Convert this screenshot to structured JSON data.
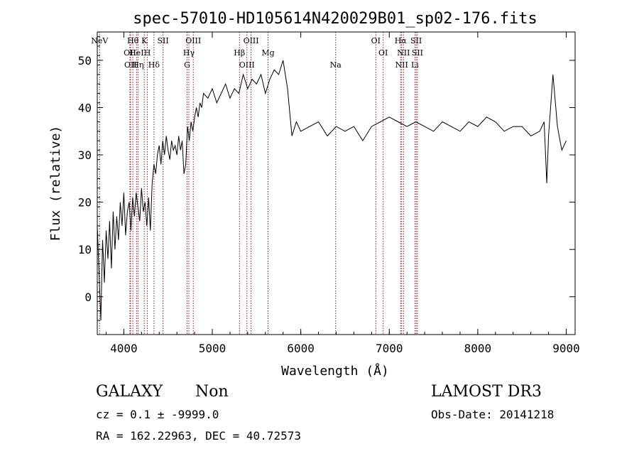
{
  "chart_data": {
    "type": "line",
    "title": "spec-57010-HD105614N420029B01_sp02-176.fits",
    "xlabel": "Wavelength (Å)",
    "ylabel": "Flux (relative)",
    "xlim": [
      3700,
      9100
    ],
    "ylim": [
      -8,
      56
    ],
    "xticks": [
      4000,
      5000,
      6000,
      7000,
      8000,
      9000
    ],
    "yticks": [
      0,
      10,
      20,
      30,
      40,
      50
    ],
    "grid": false,
    "line_color": "#000000",
    "marker_color": "#8b1a1a",
    "series": [
      {
        "x": [
          3700,
          3720,
          3740,
          3760,
          3780,
          3800,
          3820,
          3840,
          3860,
          3880,
          3900,
          3920,
          3940,
          3960,
          3980,
          4000,
          4020,
          4040,
          4060,
          4080,
          4100,
          4120,
          4140,
          4160,
          4180,
          4200,
          4220,
          4240,
          4260,
          4280,
          4300,
          4320,
          4340,
          4360,
          4380,
          4400,
          4420,
          4440,
          4460,
          4480,
          4500,
          4520,
          4540,
          4560,
          4580,
          4600,
          4620,
          4640,
          4660,
          4680,
          4700,
          4720,
          4740,
          4760,
          4780,
          4800,
          4820,
          4840,
          4860,
          4880,
          4900,
          4950,
          5000,
          5050,
          5100,
          5150,
          5200,
          5250,
          5300,
          5350,
          5400,
          5450,
          5500,
          5550,
          5600,
          5650,
          5700,
          5750,
          5800,
          5850,
          5880,
          5900,
          5950,
          6000,
          6100,
          6200,
          6300,
          6400,
          6500,
          6600,
          6700,
          6800,
          6900,
          7000,
          7100,
          7200,
          7300,
          7400,
          7500,
          7600,
          7700,
          7800,
          7900,
          8000,
          8100,
          8200,
          8300,
          8400,
          8500,
          8600,
          8700,
          8750,
          8780,
          8800,
          8850,
          8900,
          8950,
          9000
        ],
        "y": [
          15,
          5,
          -5,
          12,
          3,
          14,
          8,
          16,
          6,
          18,
          10,
          17,
          12,
          20,
          15,
          22,
          13,
          18,
          20,
          14,
          21,
          17,
          22,
          19,
          16,
          23,
          18,
          20,
          15,
          21,
          14,
          24,
          28,
          26,
          30,
          32,
          28,
          33,
          30,
          34,
          31,
          29,
          33,
          31,
          32,
          30,
          34,
          31,
          33,
          26,
          28,
          36,
          33,
          37,
          35,
          38,
          40,
          38,
          41,
          40,
          43,
          42,
          44,
          41,
          43,
          45,
          42,
          44,
          43,
          47,
          44,
          46,
          45,
          47,
          43,
          46,
          48,
          47,
          50,
          44,
          38,
          34,
          37,
          35,
          36,
          37,
          34,
          36,
          35,
          36,
          33,
          36,
          37,
          38,
          37,
          36,
          37,
          36,
          35,
          37,
          36,
          35,
          37,
          36,
          38,
          37,
          35,
          36,
          36,
          34,
          35,
          37,
          24,
          34,
          47,
          36,
          31,
          33
        ]
      }
    ],
    "lines": [
      {
        "label": "NeV",
        "wavelength": 3726
      },
      {
        "label": "OII",
        "wavelength": 4069
      },
      {
        "label": "OII",
        "wavelength": 4076
      },
      {
        "label": "Hθ",
        "wavelength": 4102
      },
      {
        "label": "HeI",
        "wavelength": 4144
      },
      {
        "label": "Hη",
        "wavelength": 4160
      },
      {
        "label": "K",
        "wavelength": 4231
      },
      {
        "label": "H",
        "wavelength": 4266
      },
      {
        "label": "Hδ",
        "wavelength": 4341
      },
      {
        "label": "SII",
        "wavelength": 4443
      },
      {
        "label": "Hγ",
        "wavelength": 4735
      },
      {
        "label": "G",
        "wavelength": 4715
      },
      {
        "label": "OIII",
        "wavelength": 4785
      },
      {
        "label": "Hβ",
        "wavelength": 5307
      },
      {
        "label": "OIII",
        "wavelength": 5391
      },
      {
        "label": "OIII",
        "wavelength": 5438
      },
      {
        "label": "Mg",
        "wavelength": 5630
      },
      {
        "label": "Na",
        "wavelength": 6394
      },
      {
        "label": "OI",
        "wavelength": 6848
      },
      {
        "label": "OI",
        "wavelength": 6931
      },
      {
        "label": "NII",
        "wavelength": 7140
      },
      {
        "label": "Hα",
        "wavelength": 7128
      },
      {
        "label": "NII",
        "wavelength": 7161
      },
      {
        "label": "Li",
        "wavelength": 7290
      },
      {
        "label": "SII",
        "wavelength": 7304
      },
      {
        "label": "SII",
        "wavelength": 7318
      }
    ]
  },
  "info": {
    "class_left": "GALAXY",
    "class_right": "Non",
    "survey": "LAMOST DR3",
    "cz_line": "cz = 0.1 ± -9999.0",
    "obs_date_line": "Obs-Date: 20141218",
    "radec_line": "RA = 162.22963, DEC =  40.72573"
  }
}
